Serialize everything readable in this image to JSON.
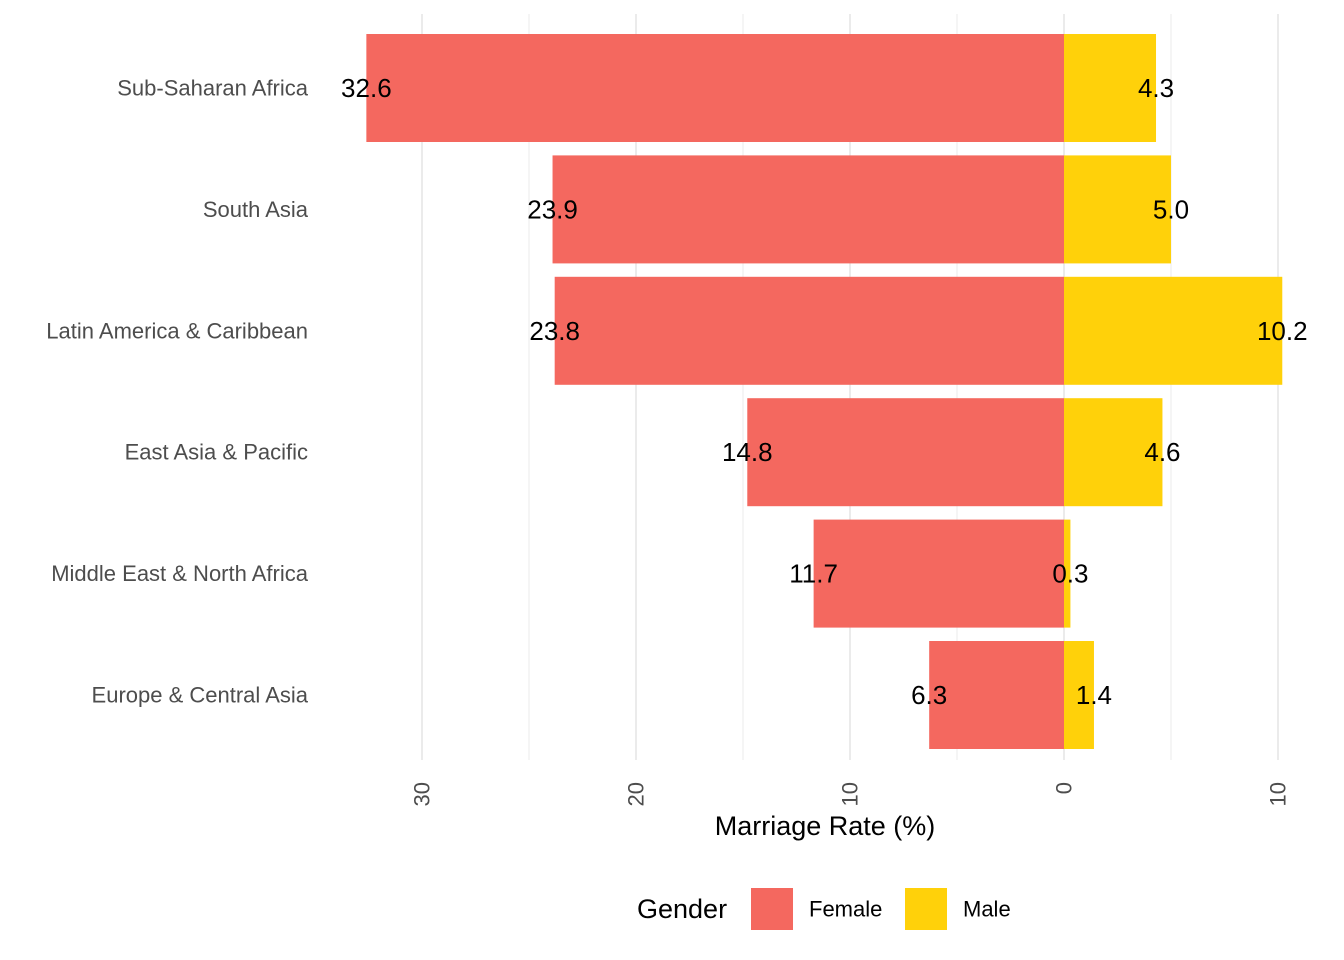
{
  "chart_data": {
    "type": "bar",
    "orientation": "horizontal",
    "stacking": "diverging",
    "categories": [
      "Sub-Saharan Africa",
      "South Asia",
      "Latin America & Caribbean",
      "East Asia & Pacific",
      "Middle East & North Africa",
      "Europe & Central Asia"
    ],
    "series": [
      {
        "name": "Female",
        "values": [
          32.6,
          23.9,
          23.8,
          14.8,
          11.7,
          6.3
        ],
        "labels": [
          "32.6",
          "23.9",
          "23.8",
          "14.8",
          "11.7",
          "6.3"
        ],
        "direction": "left",
        "color": "#F4685F"
      },
      {
        "name": "Male",
        "values": [
          4.3,
          5.0,
          10.2,
          4.6,
          0.3,
          1.4
        ],
        "labels": [
          "4.3",
          "5.0",
          "10.2",
          "4.6",
          "0.3",
          "1.4"
        ],
        "direction": "right",
        "color": "#FFD10A"
      }
    ],
    "title": "",
    "xlabel": "Marriage Rate (%)",
    "ylabel": "",
    "xaxis": {
      "female_side_max": 32.6,
      "male_side_max": 10.2,
      "ticks": [
        {
          "label": "30",
          "value": -30
        },
        {
          "label": "20",
          "value": -20
        },
        {
          "label": "10",
          "value": -10
        },
        {
          "label": "0",
          "value": 0
        },
        {
          "label": "10",
          "value": 10
        }
      ],
      "minor_ticks": [
        -25,
        -15,
        -5,
        5
      ],
      "tick_label_rotation": "vertical"
    },
    "grid": "vertical",
    "legend": {
      "title": "Gender",
      "placement": "bottom",
      "entries": [
        "Female",
        "Male"
      ]
    }
  }
}
